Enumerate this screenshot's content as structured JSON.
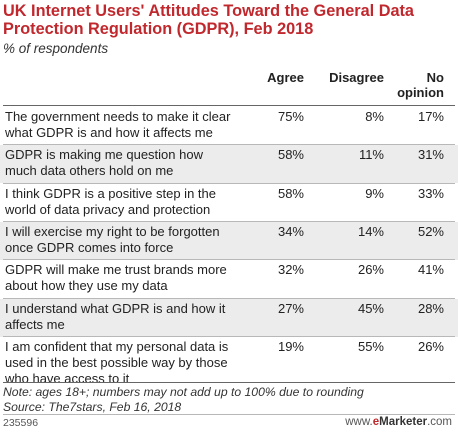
{
  "chart_data": {
    "type": "table",
    "title": "UK Internet Users' Attitudes Toward the General Data Protection Regulation (GDPR), Feb 2018",
    "subtitle": "% of respondents",
    "columns": [
      "Agree",
      "Disagree",
      "No opinion"
    ],
    "rows": [
      {
        "label": "The government needs to make it clear what GDPR is and how it affects me",
        "values": [
          "75%",
          "8%",
          "17%"
        ]
      },
      {
        "label": "GDPR is making me question how much data others hold on me",
        "values": [
          "58%",
          "11%",
          "31%"
        ]
      },
      {
        "label": "I think GDPR is a positive step in the world of data privacy and protection",
        "values": [
          "58%",
          "9%",
          "33%"
        ]
      },
      {
        "label": "I will exercise my right to be forgotten once GDPR comes into force",
        "values": [
          "34%",
          "14%",
          "52%"
        ]
      },
      {
        "label": "GDPR will make me trust brands more about how they use my data",
        "values": [
          "32%",
          "26%",
          "41%"
        ]
      },
      {
        "label": "I understand what GDPR is and how it affects me",
        "values": [
          "27%",
          "45%",
          "28%"
        ]
      },
      {
        "label": "I am confident that my personal data is used in the best possible way by those who have access to it",
        "values": [
          "19%",
          "55%",
          "26%"
        ]
      }
    ],
    "note": "Note: ages 18+; numbers may not add up to 100% due to rounding",
    "source": "Source: The7stars, Feb 16, 2018"
  },
  "footer": {
    "id": "235596",
    "brand_prefix": "www.",
    "brand_e": "e",
    "brand_name": "Marketer",
    "brand_suffix": ".com"
  }
}
